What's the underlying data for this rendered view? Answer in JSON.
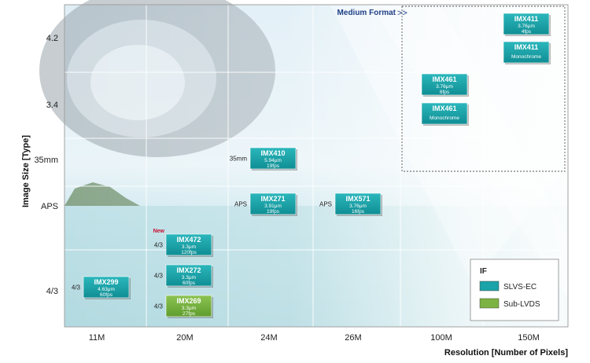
{
  "chart_data": {
    "type": "scatter",
    "title": "",
    "xlabel": "Resolution  [Number of Pixels]",
    "ylabel": "Image Size [Type]",
    "x_categories": [
      "11M",
      "20M",
      "24M",
      "26M",
      "100M",
      "150M"
    ],
    "y_categories": [
      "4/3",
      "APS",
      "35mm",
      "3.4",
      "4.2"
    ],
    "legend": {
      "title": "IF",
      "position": "bottom-right",
      "items": [
        {
          "name": "SLVS-EC",
          "color": "#1aa3a8"
        },
        {
          "name": "Sub-LVDS",
          "color": "#7cb342"
        }
      ]
    },
    "highlight_region": {
      "label": "Medium Format",
      "arrow": ">>",
      "x": [
        "100M",
        "150M"
      ],
      "y": [
        "3.4",
        "4.2"
      ]
    },
    "points": [
      {
        "name": "IMX411",
        "x": "150M",
        "y": "4.2",
        "details": [
          "3.76μm",
          "4fps"
        ],
        "interface": "SLVS-EC",
        "side_label": "",
        "badge": ""
      },
      {
        "name": "IMX411",
        "x": "150M",
        "y": "4.2",
        "details": [
          "Monochrome"
        ],
        "interface": "SLVS-EC",
        "side_label": "",
        "badge": ""
      },
      {
        "name": "IMX461",
        "x": "100M",
        "y": "3.4",
        "details": [
          "3.76μm",
          "6fps"
        ],
        "interface": "SLVS-EC",
        "side_label": "",
        "badge": ""
      },
      {
        "name": "IMX461",
        "x": "100M",
        "y": "3.4",
        "details": [
          "Monochrome"
        ],
        "interface": "SLVS-EC",
        "side_label": "",
        "badge": ""
      },
      {
        "name": "IMX410",
        "x": "24M",
        "y": "35mm",
        "details": [
          "5.94μm",
          "19fps"
        ],
        "interface": "SLVS-EC",
        "side_label": "35mm",
        "badge": ""
      },
      {
        "name": "IMX271",
        "x": "24M",
        "y": "APS",
        "details": [
          "3.91μm",
          "19fps"
        ],
        "interface": "SLVS-EC",
        "side_label": "APS",
        "badge": ""
      },
      {
        "name": "IMX571",
        "x": "26M",
        "y": "APS",
        "details": [
          "3.76μm",
          "16fps"
        ],
        "interface": "SLVS-EC",
        "side_label": "APS",
        "badge": ""
      },
      {
        "name": "IMX472",
        "x": "20M",
        "y": "4/3",
        "details": [
          "3.3μm",
          "120fps"
        ],
        "interface": "SLVS-EC",
        "side_label": "4/3",
        "badge": "New"
      },
      {
        "name": "IMX272",
        "x": "20M",
        "y": "4/3",
        "details": [
          "3.3μm",
          "60fps"
        ],
        "interface": "SLVS-EC",
        "side_label": "4/3",
        "badge": ""
      },
      {
        "name": "IMX269",
        "x": "20M",
        "y": "4/3",
        "details": [
          "3.3μm",
          "27fps"
        ],
        "interface": "Sub-LVDS",
        "side_label": "4/3",
        "badge": ""
      },
      {
        "name": "IMX299",
        "x": "11M",
        "y": "4/3",
        "details": [
          "4.63μm",
          "60fps"
        ],
        "interface": "SLVS-EC",
        "side_label": "4/3",
        "badge": ""
      }
    ]
  },
  "colors": {
    "slvs": "#1aa3a8",
    "sublvds": "#7cb342",
    "grid": "#ffffff",
    "medium_format_label": "#1f3f86"
  }
}
